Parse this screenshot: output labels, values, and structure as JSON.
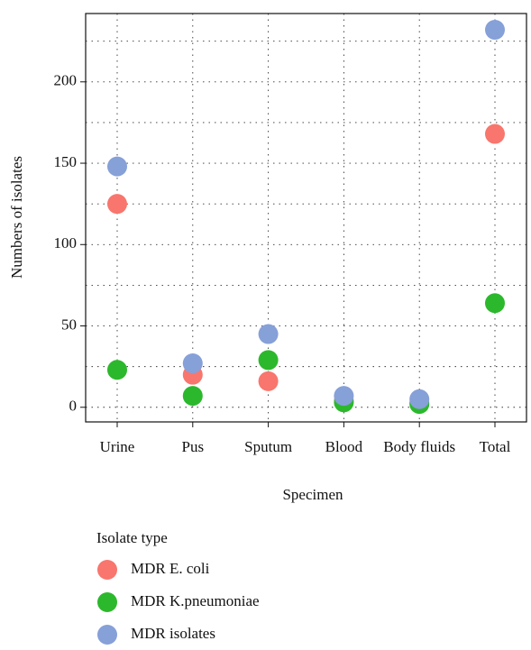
{
  "chart_data": {
    "type": "dot",
    "x_label": "Specimen",
    "y_label": "Numbers of isolates",
    "categories": [
      "Urine",
      "Pus",
      "Sputum",
      "Blood",
      "Body fluids",
      "Total"
    ],
    "series": [
      {
        "name": "MDR E. coli",
        "color": "#f8766d",
        "values": [
          125,
          20,
          16,
          4,
          3,
          168
        ]
      },
      {
        "name": "MDR K.pneumoniae",
        "color": "#2cb82c",
        "values": [
          23,
          7,
          29,
          3,
          2,
          64
        ]
      },
      {
        "name": "MDR isolates",
        "color": "#86a0d8",
        "values": [
          148,
          27,
          45,
          7,
          5,
          232
        ]
      }
    ],
    "legend_title": "Isolate type",
    "legend": "bottom",
    "ylim": [
      -9,
      242
    ],
    "yticks": [
      0,
      50,
      100,
      150,
      200
    ],
    "minor_yticks": [
      25,
      75,
      125,
      175,
      225
    ],
    "grid": true
  }
}
